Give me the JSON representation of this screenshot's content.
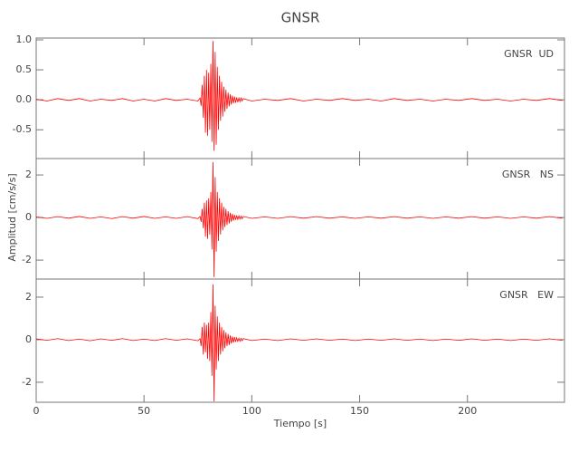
{
  "chart_data": {
    "type": "line",
    "title": "GNSR",
    "xlabel": "Tiempo [s]",
    "ylabel": "Amplitud [cm/s/s]",
    "xlim": [
      0,
      245
    ],
    "xticks": [
      0,
      50,
      100,
      150,
      200
    ],
    "x": [
      0,
      5,
      10,
      15,
      20,
      25,
      30,
      35,
      40,
      45,
      50,
      55,
      60,
      65,
      70,
      75,
      76,
      76.5,
      77,
      77.5,
      78,
      78.5,
      79,
      79.5,
      80,
      80.5,
      81,
      81.5,
      82,
      82.5,
      83,
      83.5,
      84,
      84.5,
      85,
      85.5,
      86,
      86.5,
      87,
      87.5,
      88,
      88.5,
      89,
      89.5,
      90,
      90.5,
      91,
      91.5,
      92,
      92.5,
      93,
      93.5,
      94,
      94.5,
      95,
      95.5,
      96,
      100,
      106,
      112,
      118,
      124,
      130,
      136,
      142,
      148,
      154,
      160,
      166,
      172,
      178,
      184,
      190,
      196,
      202,
      208,
      214,
      220,
      226,
      232,
      238,
      244
    ],
    "panels": [
      {
        "ylim": [
          -0.98,
          1.03
        ],
        "yticks": [
          {
            "value": 1,
            "label": "1.0"
          },
          0.5,
          {
            "value": 0,
            "label": "0.0"
          },
          -0.5
        ],
        "series": [
          {
            "name": "GNSR  UD",
            "color": "#ff0000",
            "values": [
              0.01,
              -0.02,
              0.02,
              -0.01,
              0.02,
              -0.02,
              0.01,
              -0.01,
              0.02,
              -0.02,
              0.01,
              -0.02,
              0.02,
              -0.01,
              0.01,
              -0.02,
              0.03,
              -0.1,
              0.25,
              -0.3,
              0.4,
              -0.55,
              0.5,
              -0.6,
              0.45,
              -0.5,
              0.6,
              -0.7,
              0.98,
              -0.85,
              0.8,
              -0.75,
              0.55,
              -0.5,
              0.4,
              -0.35,
              0.3,
              -0.28,
              0.22,
              -0.2,
              0.17,
              -0.15,
              0.12,
              -0.11,
              0.09,
              -0.08,
              0.07,
              -0.06,
              0.05,
              -0.05,
              0.04,
              -0.04,
              0.03,
              -0.03,
              0.03,
              -0.02,
              0.02,
              -0.02,
              0.01,
              -0.01,
              0.02,
              -0.02,
              0.01,
              -0.01,
              0.02,
              -0.01,
              0.01,
              -0.02,
              0.02,
              -0.01,
              0.01,
              -0.02,
              0.01,
              -0.01,
              0.02,
              -0.01,
              0.01,
              -0.02,
              0.01,
              -0.01,
              0.02,
              -0.01
            ]
          }
        ]
      },
      {
        "ylim": [
          -2.89,
          2.77
        ],
        "yticks": [
          2,
          0,
          -2
        ],
        "series": [
          {
            "name": "GNSR   NS",
            "color": "#ff0000",
            "values": [
              0.03,
              -0.04,
              0.04,
              -0.03,
              0.05,
              -0.04,
              0.03,
              -0.05,
              0.04,
              -0.03,
              0.05,
              -0.04,
              0.03,
              -0.04,
              0.04,
              -0.05,
              0.05,
              -0.2,
              0.4,
              -0.5,
              0.7,
              -0.9,
              0.8,
              -1.0,
              0.9,
              -0.8,
              1.2,
              -1.5,
              2.6,
              -2.8,
              1.9,
              -1.6,
              1.2,
              -1.1,
              0.9,
              -0.8,
              0.7,
              -0.6,
              0.5,
              -0.45,
              0.4,
              -0.35,
              0.3,
              -0.28,
              0.22,
              -0.2,
              0.17,
              -0.15,
              0.12,
              -0.11,
              0.1,
              -0.09,
              0.08,
              -0.07,
              0.06,
              -0.06,
              0.05,
              -0.04,
              0.03,
              -0.04,
              0.04,
              -0.03,
              0.04,
              -0.03,
              0.03,
              -0.04,
              0.03,
              -0.03,
              0.04,
              -0.03,
              0.03,
              -0.04,
              0.03,
              -0.03,
              0.04,
              -0.03,
              0.03,
              -0.04,
              0.03,
              -0.03,
              0.04,
              -0.03
            ]
          }
        ]
      },
      {
        "ylim": [
          -2.94,
          2.85
        ],
        "yticks": [
          2,
          0,
          -2
        ],
        "series": [
          {
            "name": "GNSR   EW",
            "color": "#ff0000",
            "values": [
              0.04,
              -0.03,
              0.05,
              -0.04,
              0.03,
              -0.05,
              0.04,
              -0.03,
              0.05,
              -0.04,
              0.03,
              -0.04,
              0.05,
              -0.03,
              0.04,
              -0.05,
              0.05,
              -0.3,
              0.6,
              -0.7,
              0.8,
              -0.6,
              0.7,
              -0.9,
              0.8,
              -1.0,
              1.3,
              -1.7,
              2.6,
              -2.9,
              1.6,
              -1.4,
              1.1,
              -1.0,
              0.8,
              -0.7,
              0.6,
              -0.55,
              0.45,
              -0.4,
              0.35,
              -0.3,
              0.27,
              -0.25,
              0.2,
              -0.18,
              0.15,
              -0.14,
              0.12,
              -0.1,
              0.09,
              -0.08,
              0.07,
              -0.07,
              0.06,
              -0.05,
              0.05,
              -0.04,
              0.03,
              -0.04,
              0.04,
              -0.03,
              0.04,
              -0.03,
              0.03,
              -0.04,
              0.03,
              -0.03,
              0.04,
              -0.03,
              0.03,
              -0.04,
              0.03,
              -0.03,
              0.04,
              -0.03,
              0.03,
              -0.04,
              0.03,
              -0.03,
              0.04,
              -0.03
            ]
          }
        ]
      }
    ]
  }
}
